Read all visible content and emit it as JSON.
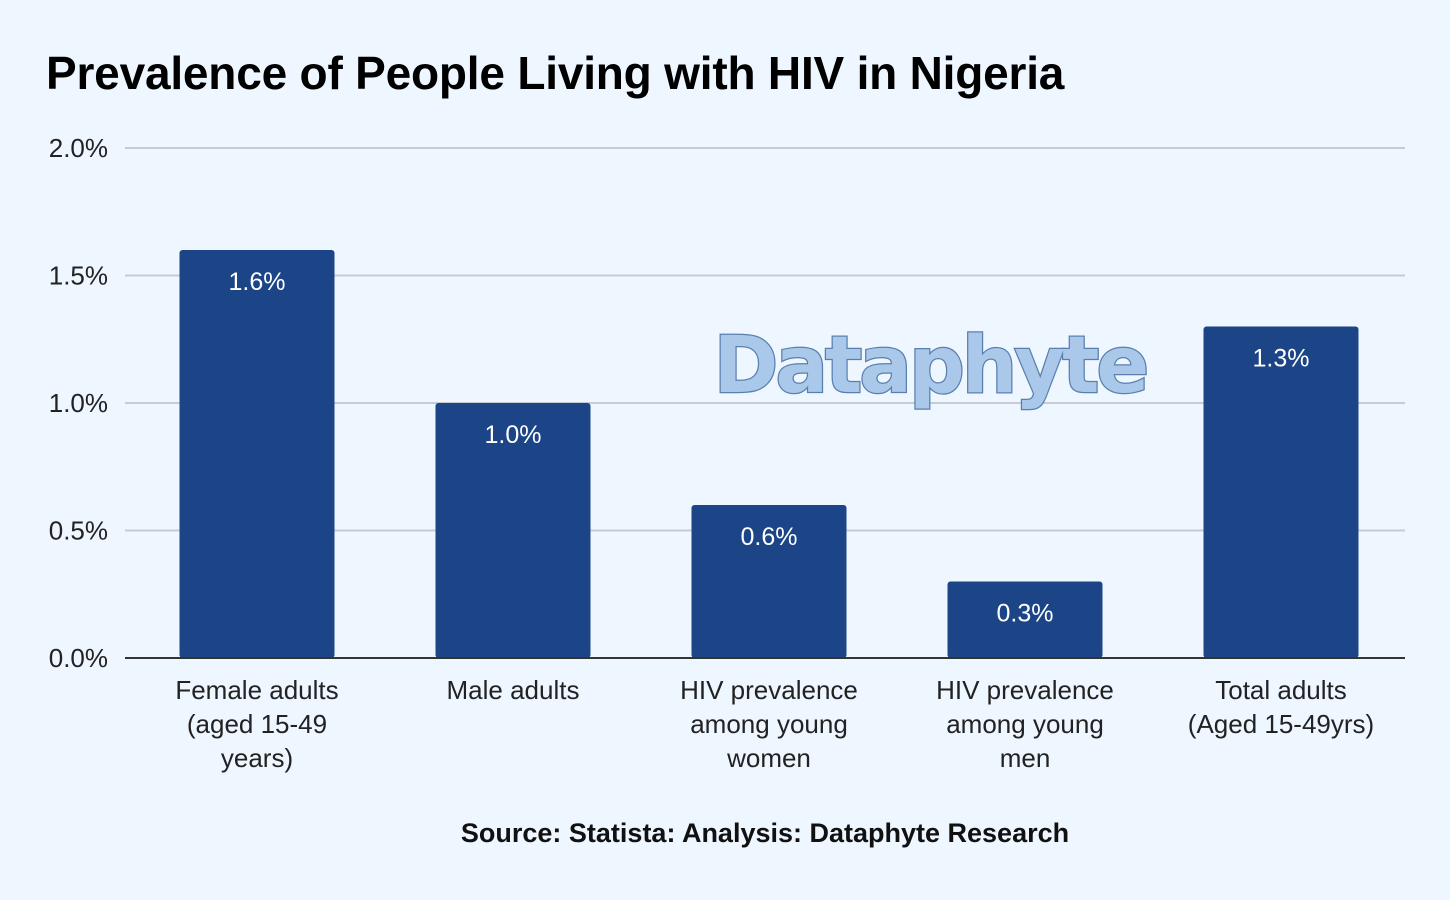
{
  "chart_data": {
    "type": "bar",
    "title": "Prevalence of People Living with HIV in Nigeria",
    "categories": [
      "Female adults (aged 15-49 years)",
      "Male adults",
      "HIV prevalence among young women",
      "HIV prevalence among young men",
      "Total adults (Aged 15-49yrs)"
    ],
    "category_label_lines": [
      [
        "Female adults",
        "(aged 15-49",
        "years)"
      ],
      [
        "Male adults"
      ],
      [
        "HIV prevalence",
        "among young",
        "women"
      ],
      [
        "HIV prevalence",
        "among young",
        "men"
      ],
      [
        "Total adults",
        "(Aged 15-49yrs)"
      ]
    ],
    "values": [
      1.6,
      1.0,
      0.6,
      0.3,
      1.3
    ],
    "data_labels": [
      "1.6%",
      "1.0%",
      "0.6%",
      "0.3%",
      "1.3%"
    ],
    "ylim": [
      0,
      2.0
    ],
    "yticks": [
      0,
      0.5,
      1.0,
      1.5,
      2.0
    ],
    "ytick_labels": [
      "0.0%",
      "0.5%",
      "1.0%",
      "1.5%",
      "2.0%"
    ],
    "xlabel": "",
    "ylabel": "",
    "grid": true,
    "legend": "none",
    "bar_color": "#1c4587"
  },
  "watermark": "Dataphyte",
  "source": "Source: Statista: Analysis: Dataphyte Research",
  "colors": {
    "background": "#eef6ff",
    "gridline": "#c8ccd2",
    "axis": "#333333",
    "watermark_fill": "#a9c8ea",
    "watermark_stroke": "#5a7fae"
  }
}
